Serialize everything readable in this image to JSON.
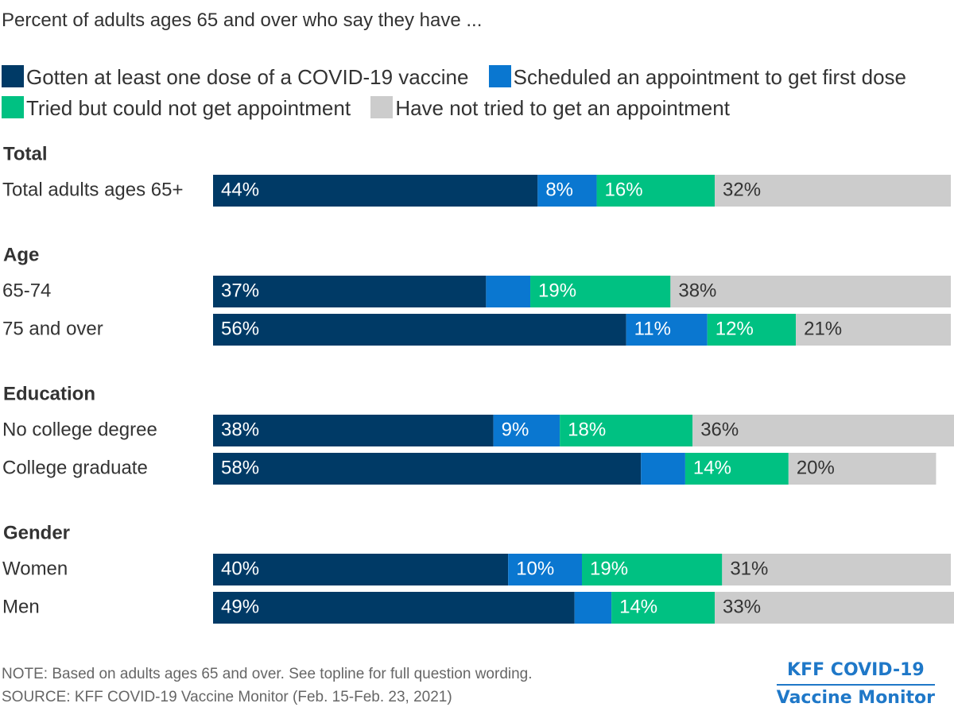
{
  "subtitle": "Percent of adults ages 65 and over who say they have ...",
  "chart_data": {
    "type": "bar",
    "orientation": "horizontal",
    "stacked": true,
    "title": "Percent of adults ages 65 and over who say they have ...",
    "xlabel": "",
    "ylabel": "",
    "xlim": [
      0,
      100
    ],
    "legend_position": "top",
    "series": [
      {
        "name": "Gotten at least one dose of a COVID-19 vaccine",
        "color": "#003a66"
      },
      {
        "name": "Scheduled an appointment to get first dose",
        "color": "#0a77d0"
      },
      {
        "name": "Tried but could not get appointment",
        "color": "#00c182"
      },
      {
        "name": "Have not tried to get an appointment",
        "color": "#cccccc"
      }
    ],
    "groups": [
      {
        "name": "Total",
        "rows": [
          {
            "label": "Total adults ages 65+",
            "values": [
              44,
              8,
              16,
              32
            ],
            "labels": [
              "44%",
              "8%",
              "16%",
              "32%"
            ]
          }
        ]
      },
      {
        "name": "Age",
        "rows": [
          {
            "label": "65-74",
            "values": [
              37,
              6,
              19,
              38
            ],
            "labels": [
              "37%",
              "",
              "19%",
              "38%"
            ]
          },
          {
            "label": "75 and over",
            "values": [
              56,
              11,
              12,
              21
            ],
            "labels": [
              "56%",
              "11%",
              "12%",
              "21%"
            ]
          }
        ]
      },
      {
        "name": "Education",
        "rows": [
          {
            "label": "No college degree",
            "values": [
              38,
              9,
              18,
              36
            ],
            "labels": [
              "38%",
              "9%",
              "18%",
              "36%"
            ]
          },
          {
            "label": "College graduate",
            "values": [
              58,
              6,
              14,
              20
            ],
            "labels": [
              "58%",
              "",
              "14%",
              "20%"
            ]
          }
        ]
      },
      {
        "name": "Gender",
        "rows": [
          {
            "label": "Women",
            "values": [
              40,
              10,
              19,
              31
            ],
            "labels": [
              "40%",
              "10%",
              "19%",
              "31%"
            ]
          },
          {
            "label": "Men",
            "values": [
              49,
              5,
              14,
              33
            ],
            "labels": [
              "49%",
              "",
              "14%",
              "33%"
            ]
          }
        ]
      }
    ]
  },
  "footer": {
    "note": "NOTE: Based on adults ages 65 and over. See topline for full question wording.",
    "source": "SOURCE: KFF COVID-19 Vaccine Monitor (Feb. 15-Feb. 23, 2021)"
  },
  "brand": {
    "line1": "KFF COVID-19",
    "line2": "Vaccine Monitor"
  }
}
